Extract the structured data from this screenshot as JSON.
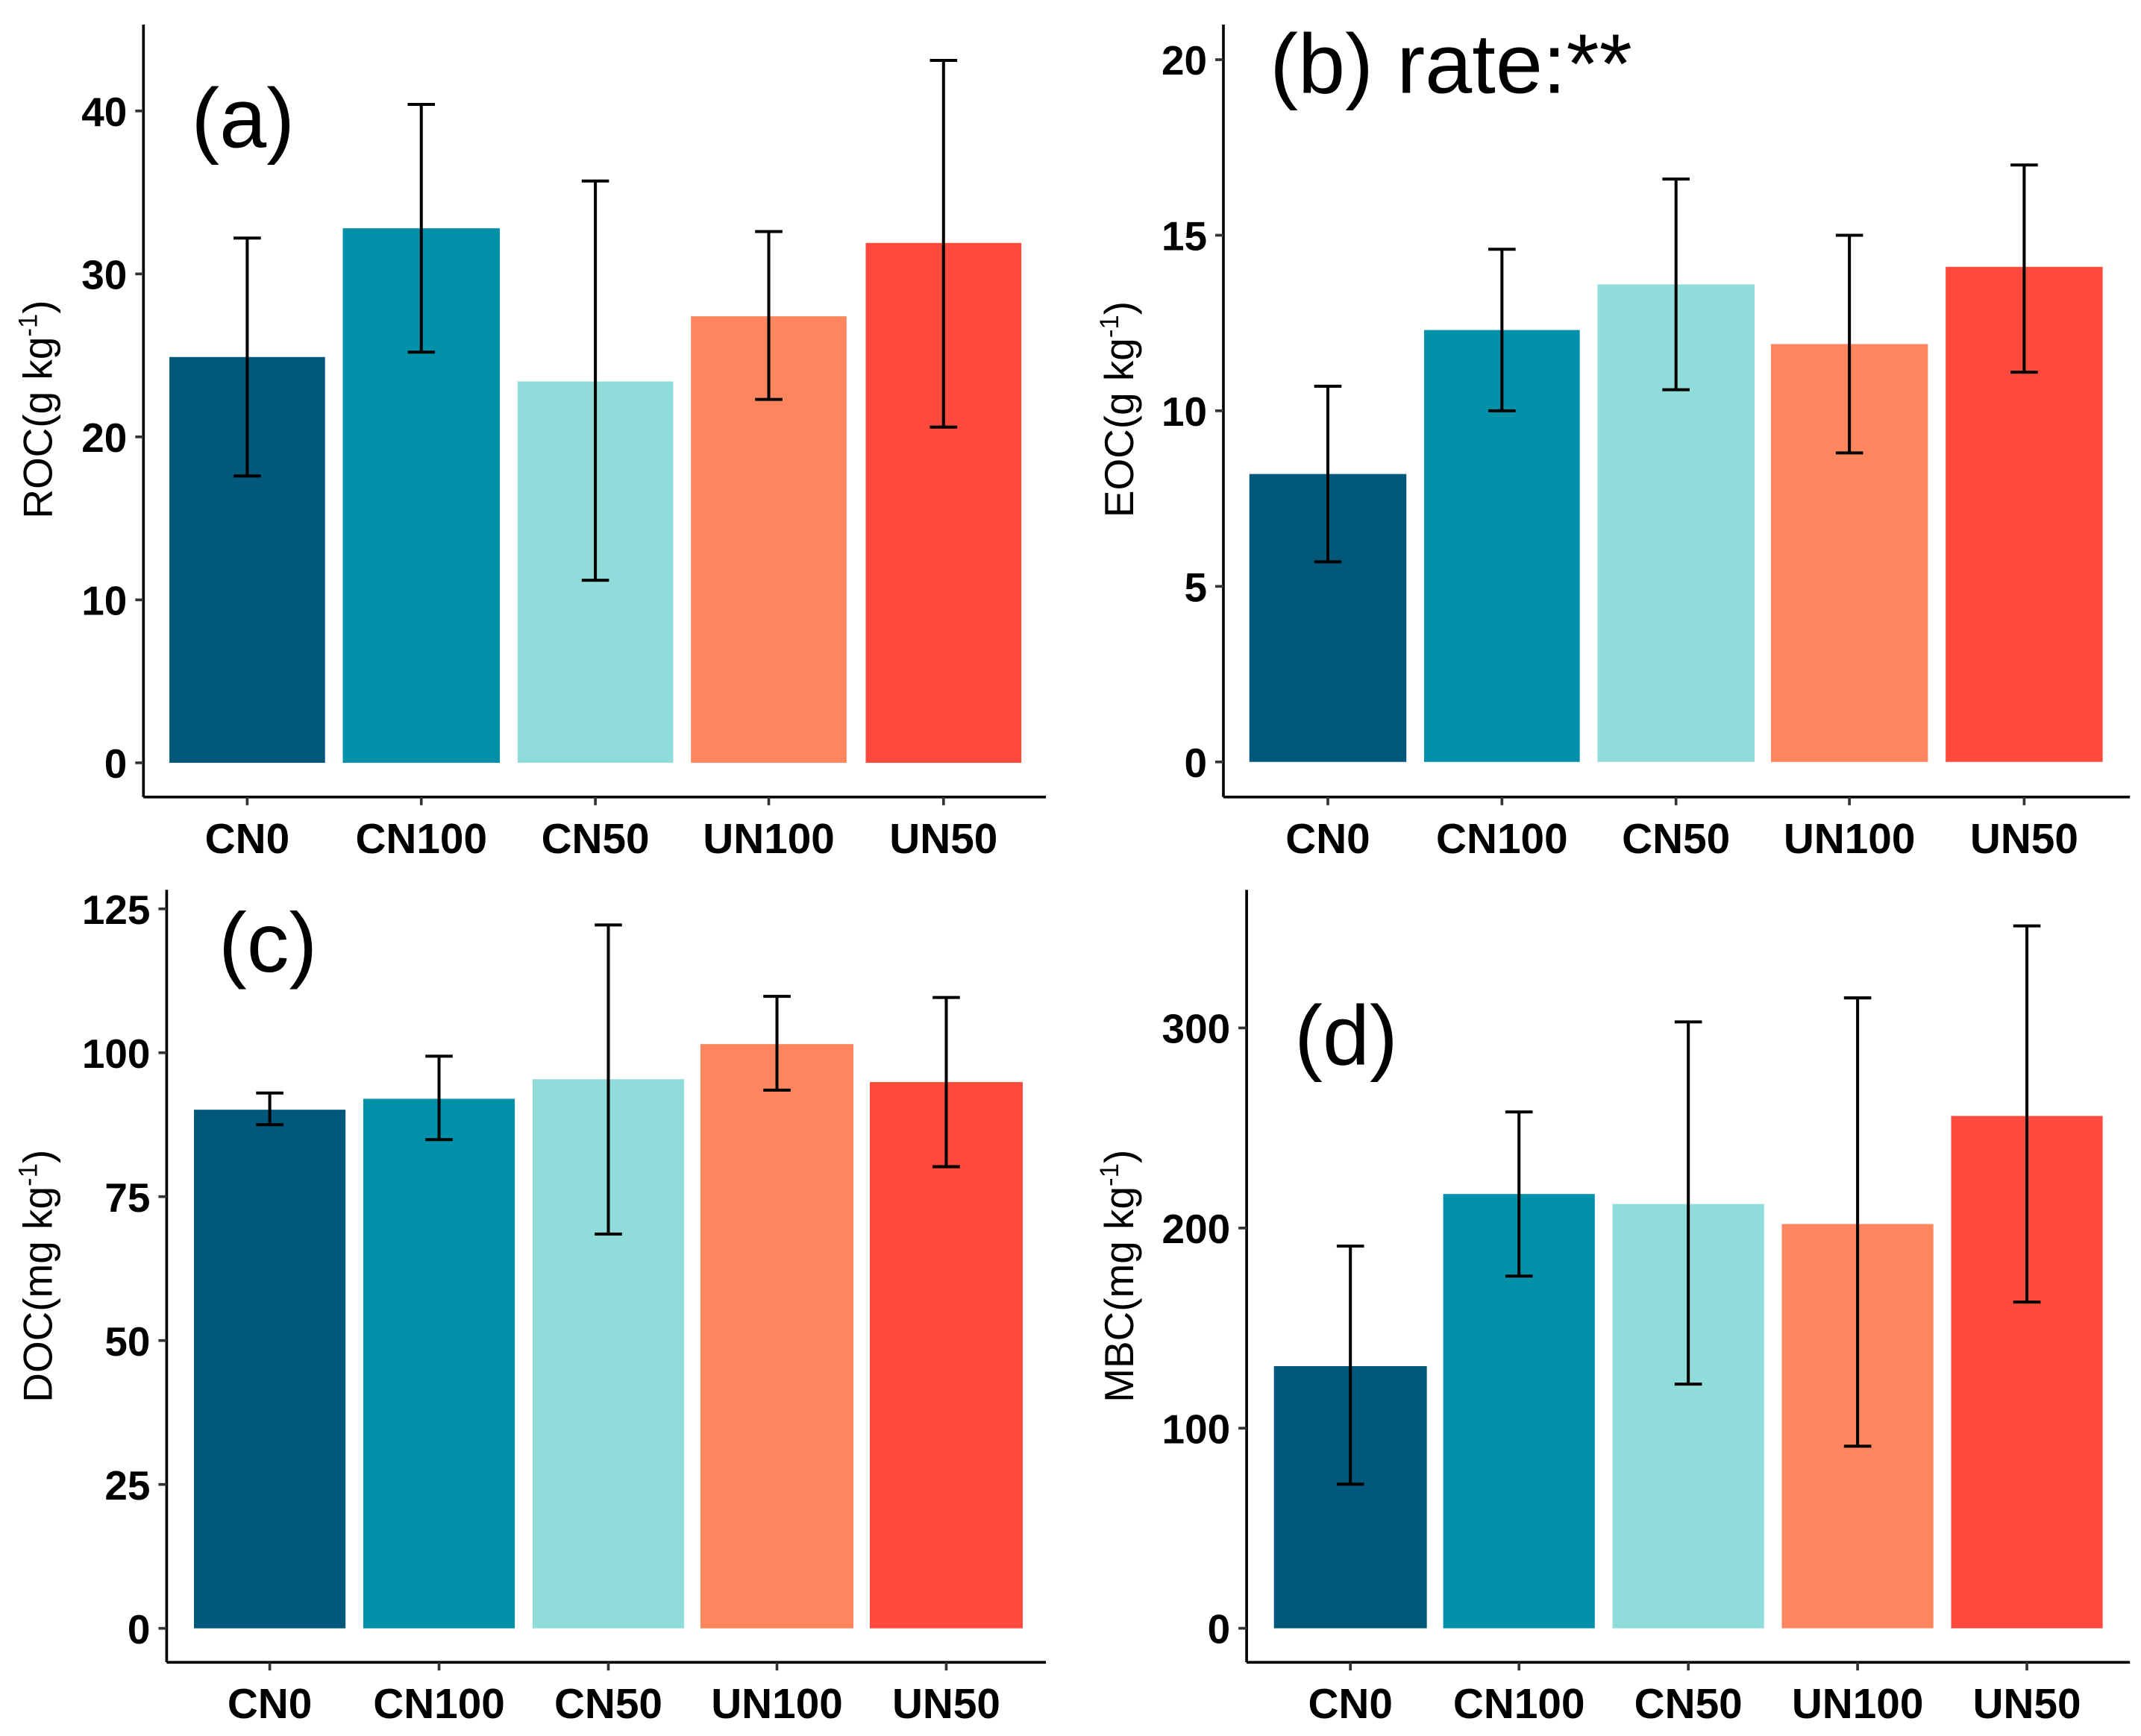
{
  "colors": [
    "#02587A",
    "#0291A9",
    "#90DCDA",
    "#FE865E",
    "#FE4A3C"
  ],
  "chart_data": [
    {
      "type": "bar",
      "panel_label": "(a)",
      "ylabel_main": "ROC(g kg",
      "ylabel_sup": "-1",
      "ylabel_close": ")",
      "categories": [
        "CN0",
        "CN100",
        "CN50",
        "UN100",
        "UN50"
      ],
      "values": [
        24.9,
        32.8,
        23.4,
        27.4,
        31.9
      ],
      "error_upper": [
        32.2,
        40.4,
        35.7,
        32.6,
        43.1
      ],
      "error_lower": [
        17.6,
        25.2,
        11.2,
        22.3,
        20.6
      ],
      "yticks": [
        0,
        10,
        20,
        30,
        40
      ],
      "ylim": [
        -2.1,
        45.3
      ]
    },
    {
      "type": "bar",
      "panel_label": "(b) rate:**",
      "ylabel_main": "EOC(g kg",
      "ylabel_sup": "-1",
      "ylabel_close": ")",
      "categories": [
        "CN0",
        "CN100",
        "CN50",
        "UN100",
        "UN50"
      ],
      "values": [
        8.2,
        12.3,
        13.6,
        11.9,
        14.1
      ],
      "error_upper": [
        10.7,
        14.6,
        16.6,
        15.0,
        17.0
      ],
      "error_lower": [
        5.7,
        10.0,
        10.6,
        8.8,
        11.1
      ],
      "yticks": [
        0,
        5,
        10,
        15,
        20
      ],
      "ylim": [
        -1.0,
        21.0
      ]
    },
    {
      "type": "bar",
      "panel_label": "(c)",
      "ylabel_main": "DOC(mg kg",
      "ylabel_sup": "-1",
      "ylabel_close": ")",
      "categories": [
        "CN0",
        "CN100",
        "CN50",
        "UN100",
        "UN50"
      ],
      "values": [
        90.1,
        92.0,
        95.4,
        101.5,
        94.9
      ],
      "error_upper": [
        93.0,
        99.4,
        122.2,
        109.8,
        109.6
      ],
      "error_lower": [
        87.5,
        84.9,
        68.5,
        93.5,
        80.2
      ],
      "yticks": [
        0,
        25,
        50,
        75,
        100,
        125
      ],
      "ylim": [
        -5.9,
        128.3
      ]
    },
    {
      "type": "bar",
      "panel_label": "(d)",
      "ylabel_main": "MBC(mg kg",
      "ylabel_sup": "-1",
      "ylabel_close": ")",
      "categories": [
        "CN0",
        "CN100",
        "CN50",
        "UN100",
        "UN50"
      ],
      "values": [
        131,
        217,
        212,
        202,
        256
      ],
      "error_upper": [
        191,
        258,
        303,
        315,
        351
      ],
      "error_lower": [
        72,
        176,
        122,
        91,
        163
      ],
      "yticks": [
        0,
        100,
        200,
        300
      ],
      "ylim": [
        -17,
        369
      ]
    }
  ]
}
